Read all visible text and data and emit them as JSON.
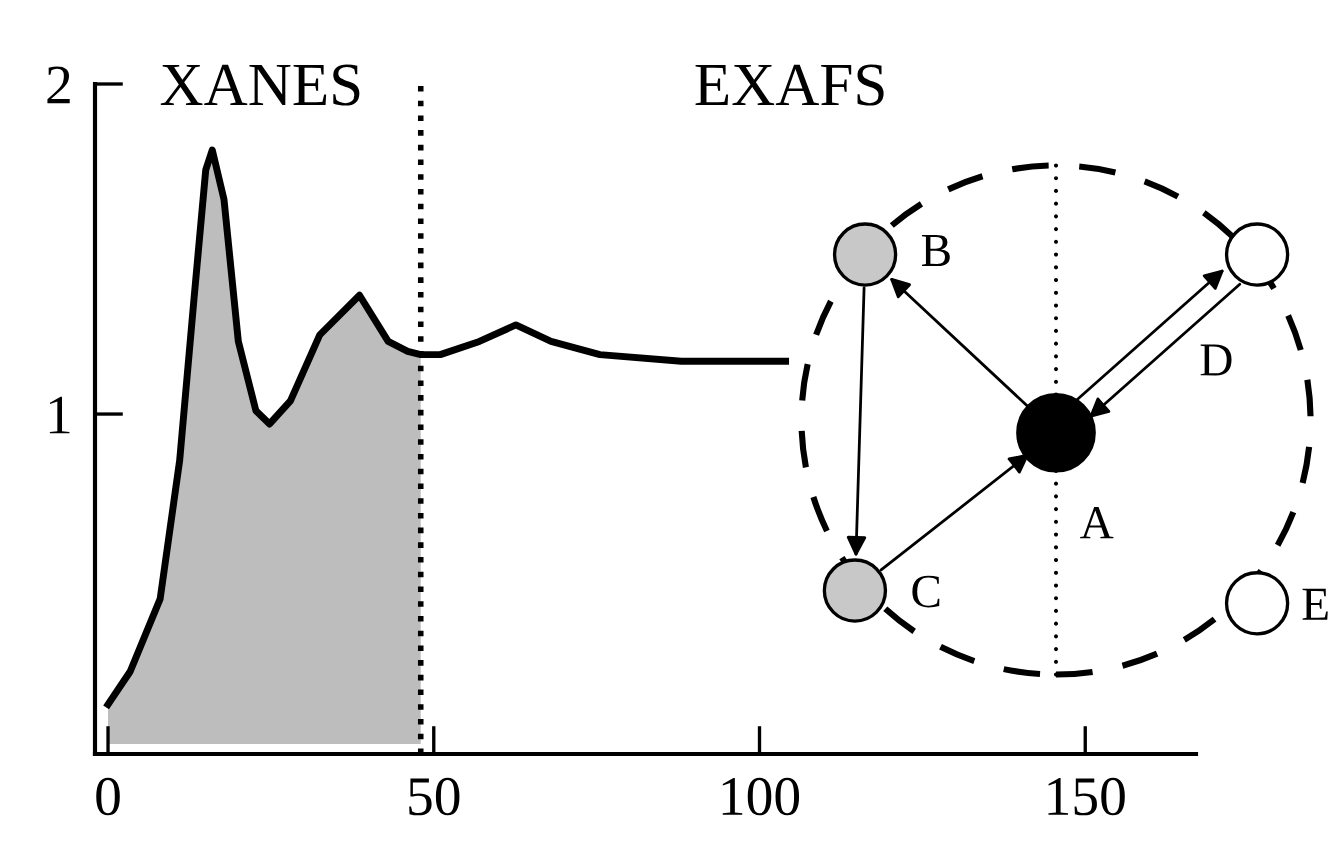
{
  "chart_data": {
    "type": "line",
    "xlim": [
      -2,
      167
    ],
    "ylim": [
      -0.03,
      2.0
    ],
    "xticks": [
      0,
      50,
      100,
      150
    ],
    "yticks": [
      1,
      2
    ],
    "series": [
      {
        "type": "area",
        "color": "#bdbdbd",
        "x": [
          0,
          3.4,
          8,
          11,
          13.2,
          15,
          16,
          17.8,
          20,
          22.7,
          24.8,
          28,
          32.5,
          38.6,
          43,
          46,
          48
        ],
        "values": [
          0.12,
          0.22,
          0.44,
          0.86,
          1.35,
          1.74,
          1.8,
          1.65,
          1.22,
          1.01,
          0.97,
          1.04,
          1.24,
          1.36,
          1.22,
          1.19,
          1.18
        ]
      },
      {
        "color": "#000000",
        "x": [
          0,
          3.4,
          8,
          11,
          13.2,
          15,
          16,
          17.8,
          20,
          22.7,
          24.8,
          28,
          32.5,
          38.6,
          43,
          46,
          48,
          51,
          57,
          62.6,
          68,
          75.5,
          88,
          104
        ],
        "values": [
          0.12,
          0.22,
          0.44,
          0.86,
          1.35,
          1.74,
          1.8,
          1.65,
          1.22,
          1.01,
          0.97,
          1.04,
          1.24,
          1.36,
          1.22,
          1.19,
          1.18,
          1.18,
          1.22,
          1.27,
          1.22,
          1.18,
          1.16,
          1.16
        ]
      }
    ],
    "ref_lines": [
      {
        "axis": "x",
        "value": 48,
        "color": "#000000",
        "line_style": "dotted"
      }
    ],
    "annotations": [
      "XANES",
      "EXAFS",
      "A",
      "B",
      "C",
      "D",
      "E"
    ],
    "grid": false,
    "legend": false
  }
}
